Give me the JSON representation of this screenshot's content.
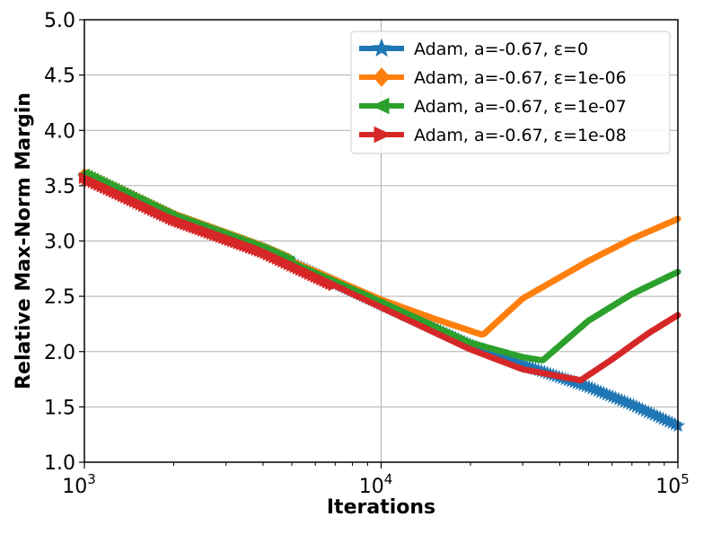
{
  "chart_data": {
    "type": "line",
    "xlabel": "Iterations",
    "ylabel": "Relative Max-Norm Margin",
    "xscale": "log",
    "xlim": [
      1000,
      100000
    ],
    "ylim": [
      1.0,
      5.0
    ],
    "xticks": [
      {
        "value": 1000,
        "base": "10",
        "exp": "3"
      },
      {
        "value": 10000,
        "base": "10",
        "exp": "4"
      },
      {
        "value": 100000,
        "base": "10",
        "exp": "5"
      }
    ],
    "yticks": [
      "1.0",
      "1.5",
      "2.0",
      "2.5",
      "3.0",
      "3.5",
      "4.0",
      "4.5",
      "5.0"
    ],
    "grid": true,
    "legend_position": "top-right",
    "series": [
      {
        "name": "Adam, a=-0.67, ε=0",
        "color": "#1f77b4",
        "marker": "star",
        "x": [
          1000,
          2000,
          4000,
          10000,
          20000,
          30000,
          50000,
          70000,
          100000
        ],
        "y": [
          3.58,
          3.2,
          2.92,
          2.43,
          2.06,
          1.88,
          1.68,
          1.52,
          1.33
        ]
      },
      {
        "name": "Adam, a=-0.67, ε=1e-06",
        "color": "#ff7f0e",
        "marker": "diamond",
        "x": [
          1000,
          2000,
          4000,
          10000,
          15000,
          22000,
          30000,
          50000,
          70000,
          100000
        ],
        "y": [
          3.6,
          3.22,
          2.93,
          2.47,
          2.3,
          2.15,
          2.48,
          2.82,
          3.02,
          3.2
        ],
        "markers_until": 5000
      },
      {
        "name": "Adam, a=-0.67, ε=1e-07",
        "color": "#2ca02c",
        "marker": "triangle-left",
        "x": [
          1000,
          2000,
          4000,
          10000,
          20000,
          30000,
          35000,
          50000,
          70000,
          100000
        ],
        "y": [
          3.6,
          3.21,
          2.92,
          2.45,
          2.08,
          1.95,
          1.92,
          2.28,
          2.52,
          2.72
        ],
        "markers_until": 5000
      },
      {
        "name": "Adam, a=-0.67, ε=1e-08",
        "color": "#d62728",
        "marker": "triangle-right",
        "x": [
          1000,
          2000,
          4000,
          10000,
          20000,
          30000,
          45000,
          47000,
          60000,
          80000,
          100000
        ],
        "y": [
          3.57,
          3.19,
          2.9,
          2.4,
          2.02,
          1.84,
          1.75,
          1.74,
          1.93,
          2.17,
          2.33
        ],
        "markers_until": 7000
      }
    ]
  }
}
